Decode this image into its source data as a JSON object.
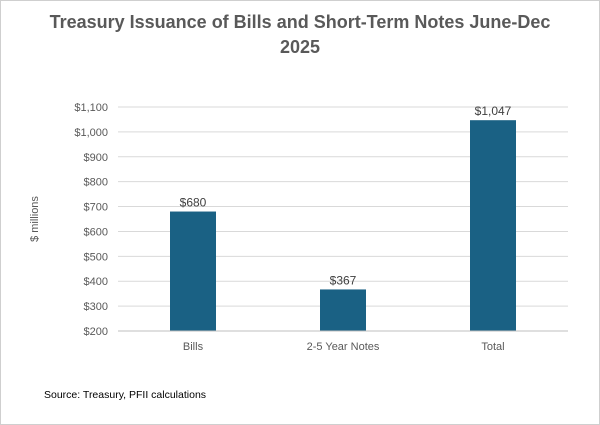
{
  "chart_data": {
    "type": "bar",
    "title": "Treasury Issuance of Bills and Short-Term Notes June-Dec 2025",
    "xlabel": "",
    "ylabel": "$ millions",
    "categories": [
      "Bills",
      "2-5 Year Notes",
      "Total"
    ],
    "values": [
      680,
      367,
      1047
    ],
    "data_labels": [
      "$680",
      "$367",
      "$1,047"
    ],
    "ylim": [
      200,
      1100
    ],
    "yticks": [
      200,
      300,
      400,
      500,
      600,
      700,
      800,
      900,
      1000,
      1100
    ],
    "ytick_labels": [
      "$200",
      "$300",
      "$400",
      "$500",
      "$600",
      "$700",
      "$800",
      "$900",
      "$1,000",
      "$1,100"
    ],
    "grid": true,
    "legend": "none",
    "bar_color": "#1a6184"
  },
  "source": "Source: Treasury, PFII calculations"
}
